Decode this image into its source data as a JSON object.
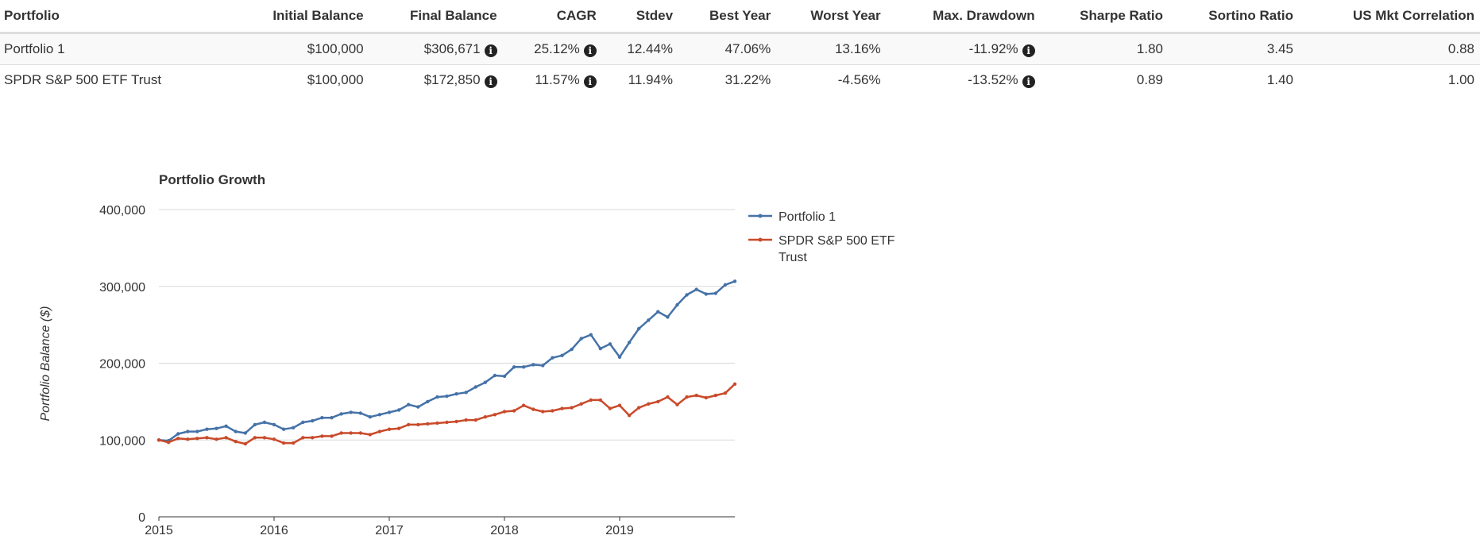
{
  "table": {
    "headers": [
      "Portfolio",
      "Initial Balance",
      "Final Balance",
      "CAGR",
      "Stdev",
      "Best Year",
      "Worst Year",
      "Max. Drawdown",
      "Sharpe Ratio",
      "Sortino Ratio",
      "US Mkt Correlation"
    ],
    "rows": [
      {
        "name": "Portfolio 1",
        "initial": "$100,000",
        "final": "$306,671",
        "cagr": "25.12%",
        "stdev": "12.44%",
        "best": "47.06%",
        "worst": "13.16%",
        "maxdd": "-11.92%",
        "sharpe": "1.80",
        "sortino": "3.45",
        "corr": "0.88"
      },
      {
        "name": "SPDR S&P 500 ETF Trust",
        "initial": "$100,000",
        "final": "$172,850",
        "cagr": "11.57%",
        "stdev": "11.94%",
        "best": "31.22%",
        "worst": "-4.56%",
        "maxdd": "-13.52%",
        "sharpe": "0.89",
        "sortino": "1.40",
        "corr": "1.00"
      }
    ],
    "info_icon": "info-circle-icon"
  },
  "chart_data": {
    "type": "line",
    "title": "Portfolio Growth",
    "xlabel": "",
    "ylabel": "Portfolio Balance ($)",
    "ylim": [
      0,
      400000
    ],
    "yticks": [
      "0",
      "100,000",
      "200,000",
      "300,000",
      "400,000"
    ],
    "xticks": [
      "2015",
      "2016",
      "2017",
      "2018",
      "2019"
    ],
    "x_range": [
      "2015-01",
      "2020-01"
    ],
    "grid": true,
    "legend_position": "right",
    "x": [
      "2015-01",
      "2015-02",
      "2015-03",
      "2015-04",
      "2015-05",
      "2015-06",
      "2015-07",
      "2015-08",
      "2015-09",
      "2015-10",
      "2015-11",
      "2015-12",
      "2016-01",
      "2016-02",
      "2016-03",
      "2016-04",
      "2016-05",
      "2016-06",
      "2016-07",
      "2016-08",
      "2016-09",
      "2016-10",
      "2016-11",
      "2016-12",
      "2017-01",
      "2017-02",
      "2017-03",
      "2017-04",
      "2017-05",
      "2017-06",
      "2017-07",
      "2017-08",
      "2017-09",
      "2017-10",
      "2017-11",
      "2017-12",
      "2018-01",
      "2018-02",
      "2018-03",
      "2018-04",
      "2018-05",
      "2018-06",
      "2018-07",
      "2018-08",
      "2018-09",
      "2018-10",
      "2018-11",
      "2018-12",
      "2019-01",
      "2019-02",
      "2019-03",
      "2019-04",
      "2019-05",
      "2019-06",
      "2019-07",
      "2019-08",
      "2019-09",
      "2019-10",
      "2019-11",
      "2019-12",
      "2020-01"
    ],
    "series": [
      {
        "name": "Portfolio 1",
        "color": "#4572a7",
        "values": [
          100000,
          99000,
          108000,
          111000,
          111000,
          114000,
          115000,
          118000,
          111000,
          109000,
          120000,
          123000,
          120000,
          114000,
          116000,
          123000,
          125000,
          129000,
          129000,
          134000,
          136000,
          135000,
          130000,
          133000,
          136000,
          139000,
          146000,
          143000,
          150000,
          156000,
          157000,
          160000,
          162000,
          169000,
          175000,
          184000,
          183000,
          195000,
          195000,
          198000,
          197000,
          207000,
          210000,
          218000,
          232000,
          237000,
          219000,
          225000,
          208000,
          227000,
          245000,
          256000,
          267000,
          260000,
          276000,
          289000,
          296000,
          290000,
          291000,
          302000,
          306671
        ]
      },
      {
        "name": "SPDR S&P 500 ETF Trust",
        "color": "#c94a2a",
        "values": [
          100000,
          97000,
          102000,
          101000,
          102000,
          103000,
          101000,
          103000,
          98000,
          95000,
          103000,
          103000,
          101000,
          96000,
          96000,
          103000,
          103000,
          105000,
          105000,
          109000,
          109000,
          109000,
          107000,
          111000,
          114000,
          115000,
          120000,
          120000,
          121000,
          122000,
          123000,
          124000,
          126000,
          126000,
          130000,
          133000,
          137000,
          138000,
          145000,
          140000,
          137000,
          138000,
          141000,
          142000,
          147000,
          152000,
          152000,
          141000,
          145000,
          132000,
          142000,
          147000,
          150000,
          156000,
          146000,
          156000,
          158000,
          155000,
          158000,
          161000,
          172850
        ]
      }
    ]
  }
}
